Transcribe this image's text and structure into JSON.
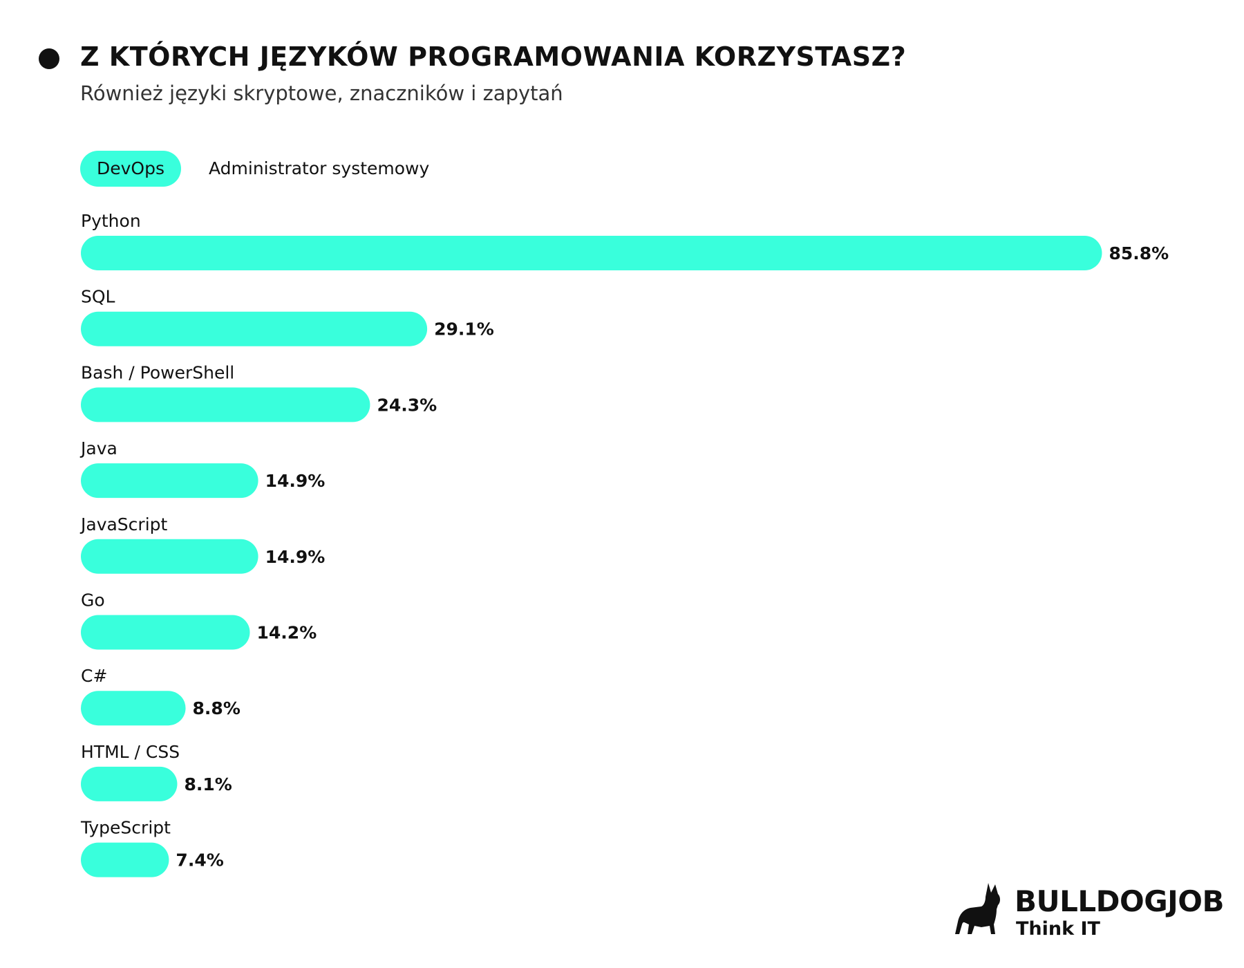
{
  "header": {
    "title": "Z KTÓRYCH JĘZYKÓW PROGRAMOWANIA KORZYSTASZ?",
    "subtitle": "Również języki skryptowe, znaczników i zapytań"
  },
  "tabs": [
    {
      "label": "DevOps",
      "active": true
    },
    {
      "label": "Administrator systemowy",
      "active": false
    }
  ],
  "colors": {
    "accent": "#39ffdc",
    "text": "#111111"
  },
  "chart_data": {
    "type": "bar",
    "orientation": "horizontal",
    "categories": [
      "Python",
      "SQL",
      "Bash / PowerShell",
      "Java",
      "JavaScript",
      "Go",
      "C#",
      "HTML / CSS",
      "TypeScript"
    ],
    "values": [
      85.8,
      29.1,
      24.3,
      14.9,
      14.9,
      14.2,
      8.8,
      8.1,
      7.4
    ],
    "value_labels": [
      "85.8%",
      "29.1%",
      "24.3%",
      "14.9%",
      "14.9%",
      "14.2%",
      "8.8%",
      "8.1%",
      "7.4%"
    ],
    "unit": "%",
    "xlim": [
      0,
      100
    ],
    "grid": false,
    "legend": false
  },
  "logo": {
    "name": "BULLDOGJOB",
    "tagline": "Think IT",
    "icon": "bulldog-icon"
  }
}
